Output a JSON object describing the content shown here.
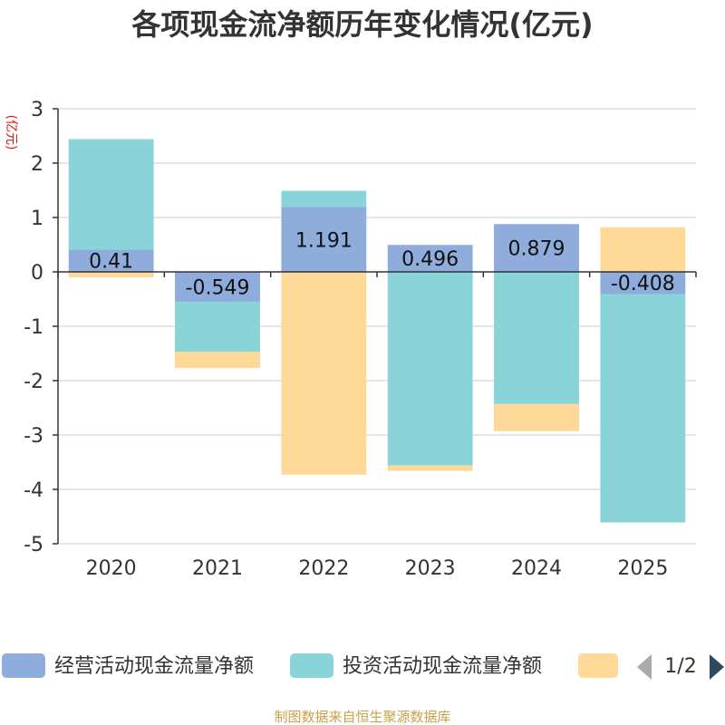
{
  "title": "各项现金流净额历年变化情况(亿元)",
  "unit_label": "(亿元)",
  "source": "制图数据来自恒生聚源数据库",
  "legend": {
    "page_indicator": "1/2",
    "prev_icon": "arrow-left-icon",
    "next_icon": "arrow-right-icon"
  },
  "colors": {
    "operating": "#8eaddc",
    "investing": "#88d4d8",
    "other": "#fdd896",
    "axis": "#333333",
    "grid": "#cccccc",
    "pager_active": "#2f4a5e",
    "pager_inactive": "#aaaaaa"
  },
  "chart_data": {
    "type": "bar",
    "stacked": true,
    "title": "各项现金流净额历年变化情况(亿元)",
    "ylabel": "(亿元)",
    "xlabel": "",
    "ylim": [
      -5,
      3
    ],
    "yticks": [
      3,
      2,
      1,
      0,
      -1,
      -2,
      -3,
      -4,
      -5
    ],
    "categories": [
      "2020",
      "2021",
      "2022",
      "2023",
      "2024",
      "2025"
    ],
    "series": [
      {
        "name": "经营活动现金流量净额",
        "key": "operating",
        "values": [
          0.41,
          -0.549,
          1.191,
          0.496,
          0.879,
          -0.408
        ],
        "show_labels": true
      },
      {
        "name": "投资活动现金流量净额",
        "key": "investing",
        "values": [
          2.03,
          -0.92,
          0.3,
          -3.56,
          -2.43,
          -4.2
        ],
        "show_labels": false
      },
      {
        "name": "",
        "key": "other",
        "values": [
          -0.1,
          -0.3,
          -3.73,
          -0.1,
          -0.5,
          0.82
        ],
        "show_labels": false
      }
    ],
    "grid": true,
    "legend_position": "bottom"
  }
}
